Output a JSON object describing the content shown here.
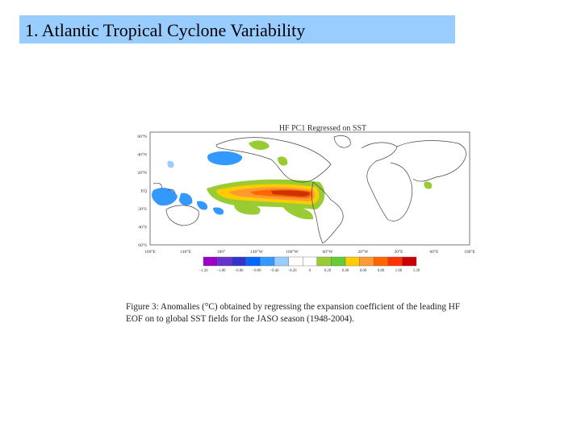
{
  "slide": {
    "title": "1. Atlantic Tropical Cyclone Variability"
  },
  "figure": {
    "map_title": "HF PC1 Regressed on SST",
    "lat_labels": [
      "60°N",
      "40°N",
      "20°N",
      "EQ",
      "20°S",
      "40°S",
      "60°S"
    ],
    "lon_labels": [
      "100°E",
      "140°E",
      "180°",
      "140°W",
      "100°W",
      "60°W",
      "20°W",
      "20°E",
      "60°E",
      "100°E"
    ],
    "colorbar": {
      "colors": [
        "#9900cc",
        "#6633cc",
        "#3333cc",
        "#0066ff",
        "#3399ff",
        "#99ccff",
        "#ffffff",
        "#ffffff",
        "#99cc33",
        "#66cc33",
        "#ffcc00",
        "#ff9933",
        "#ff6600",
        "#ff3300",
        "#cc0000"
      ],
      "ticks": [
        "−1.20",
        "−1.00",
        "−0.80",
        "−0.60",
        "−0.40",
        "−0.20",
        "0",
        "0.20",
        "0.40",
        "0.60",
        "0.80",
        "1.00",
        "1.20"
      ]
    },
    "caption_line1": "Figure 3: Anomalies (°C) obtained by regressing the expansion coefficient of the leading HF",
    "caption_line2": "EOF on to global SST fields for the JASO season (1948-2004).",
    "colors": {
      "title_background": "#99ccff",
      "warm_core": "#cc3300",
      "warm_mid": "#ff9933",
      "warm_low": "#ffcc00",
      "warm_edge": "#99cc33",
      "cool": "#3399ff"
    }
  }
}
